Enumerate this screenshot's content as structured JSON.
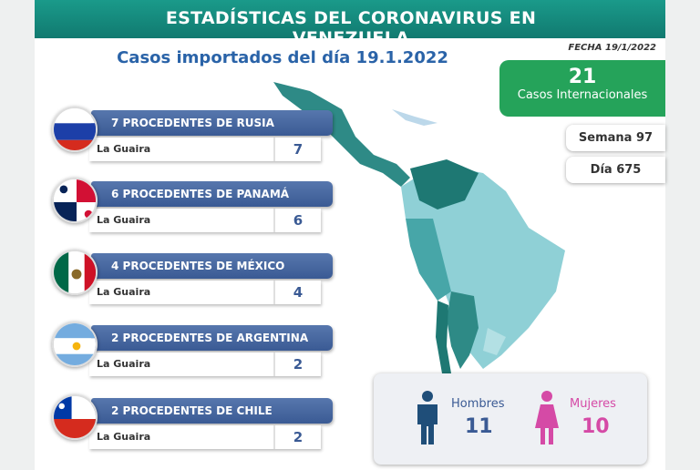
{
  "header": {
    "title": "ESTADÍSTICAS DEL CORONAVIRUS EN VENEZUELA",
    "date": "FECHA 19/1/2022"
  },
  "subtitle": "Casos importados del día 19.1.2022",
  "summary": {
    "total": 21,
    "total_label": "Casos Internacionales",
    "week": "Semana 97",
    "day": "Día 675"
  },
  "origins": [
    {
      "title": "7 PROCEDENTES DE RUSIA",
      "place": "La Guaira",
      "count": 7
    },
    {
      "title": "6 PROCEDENTES DE PANAMÁ",
      "place": "La Guaira",
      "count": 6
    },
    {
      "title": "4 PROCEDENTES DE MÉXICO",
      "place": "La Guaira",
      "count": 4
    },
    {
      "title": "2 PROCEDENTES DE ARGENTINA",
      "place": "La Guaira",
      "count": 2
    },
    {
      "title": "2 PROCEDENTES DE CHILE",
      "place": "La Guaira",
      "count": 2
    }
  ],
  "gender": {
    "men_label": "Hombres",
    "men": 11,
    "women_label": "Mujeres",
    "women": 10
  }
}
